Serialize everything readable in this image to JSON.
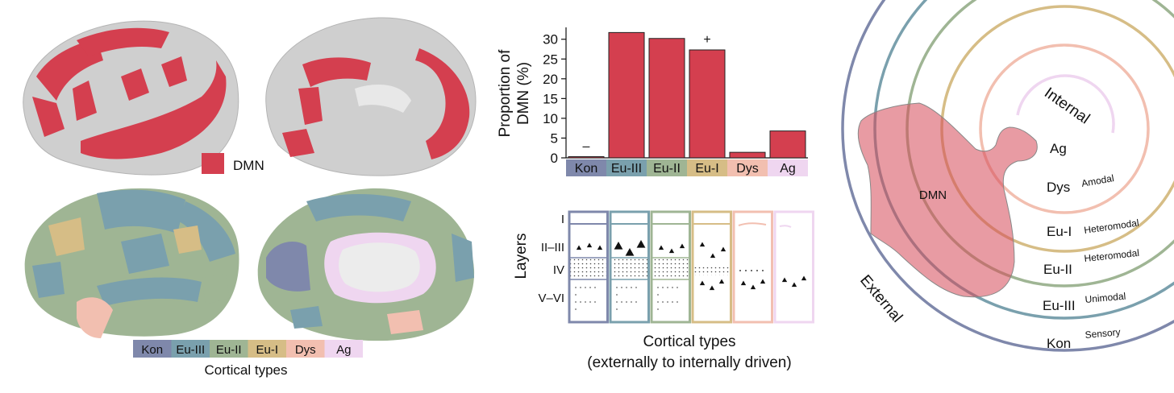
{
  "colors": {
    "dmn": "#d43f4f",
    "kon": "#7f88ab",
    "eu3": "#7aa0ad",
    "eu2": "#9fb594",
    "eu1": "#d6bd86",
    "dys": "#f2bfb0",
    "ag": "#efd6f0",
    "cortex_gray": "#cfcfcf"
  },
  "brain_panel": {
    "dmn_legend_label": "DMN",
    "types_legend": [
      "Kon",
      "Eu-III",
      "Eu-II",
      "Eu-I",
      "Dys",
      "Ag"
    ],
    "types_caption": "Cortical types"
  },
  "chart_data": {
    "type": "bar",
    "categories": [
      "Kon",
      "Eu-III",
      "Eu-II",
      "Eu-I",
      "Dys",
      "Ag"
    ],
    "values": [
      0.3,
      31.7,
      30.2,
      27.3,
      1.4,
      6.8
    ],
    "annotations": [
      "–",
      "",
      "",
      "+",
      "",
      ""
    ],
    "ylabel": "Proportion of DMN (%)",
    "ylabel_lines": [
      "Proportion of",
      "DMN (%)"
    ],
    "yticks": [
      0,
      5,
      10,
      15,
      20,
      25,
      30
    ],
    "ylim": [
      0,
      33
    ]
  },
  "layers_panel": {
    "ylabel": "Layers",
    "layer_labels": [
      "I",
      "II–III",
      "IV",
      "V–VI"
    ],
    "caption_line1": "Cortical types",
    "caption_line2": "(externally to internally driven)"
  },
  "rings_panel": {
    "dmn_label": "DMN",
    "internal_label": "Internal",
    "external_label": "External",
    "rings": [
      {
        "type": "Ag",
        "desc": ""
      },
      {
        "type": "Dys",
        "desc": "Amodal"
      },
      {
        "type": "Eu-I",
        "desc": "Heteromodal"
      },
      {
        "type": "Eu-II",
        "desc": "Heteromodal"
      },
      {
        "type": "Eu-III",
        "desc": "Unimodal"
      },
      {
        "type": "Kon",
        "desc": "Sensory"
      }
    ]
  }
}
